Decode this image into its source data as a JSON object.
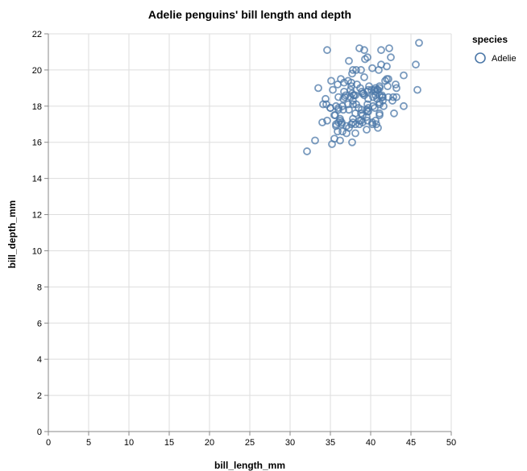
{
  "chart_data": {
    "type": "scatter",
    "title": "Adelie penguins' bill length and depth",
    "xlabel": "bill_length_mm",
    "ylabel": "bill_depth_mm",
    "xlim": [
      0,
      50
    ],
    "ylim": [
      0,
      22
    ],
    "x_ticks": [
      0,
      5,
      10,
      15,
      20,
      25,
      30,
      35,
      40,
      45,
      50
    ],
    "y_ticks": [
      0,
      2,
      4,
      6,
      8,
      10,
      12,
      14,
      16,
      18,
      20,
      22
    ],
    "grid": true,
    "legend": {
      "title": "species",
      "placement": "top-right",
      "entries": [
        "Adelie"
      ]
    },
    "colors": {
      "series": "#4c78a8"
    },
    "series": [
      {
        "name": "Adelie",
        "points": [
          [
            39.1,
            18.7
          ],
          [
            39.5,
            17.4
          ],
          [
            40.3,
            18.0
          ],
          [
            36.7,
            19.3
          ],
          [
            39.3,
            20.6
          ],
          [
            38.9,
            17.8
          ],
          [
            39.2,
            19.6
          ],
          [
            34.1,
            18.1
          ],
          [
            42.0,
            20.2
          ],
          [
            37.8,
            17.1
          ],
          [
            37.8,
            17.3
          ],
          [
            41.1,
            17.6
          ],
          [
            38.6,
            21.2
          ],
          [
            34.6,
            21.1
          ],
          [
            36.6,
            17.8
          ],
          [
            38.7,
            19.0
          ],
          [
            42.5,
            20.7
          ],
          [
            34.4,
            18.4
          ],
          [
            46.0,
            21.5
          ],
          [
            37.8,
            18.3
          ],
          [
            37.7,
            18.7
          ],
          [
            35.9,
            19.2
          ],
          [
            38.2,
            18.1
          ],
          [
            38.8,
            17.2
          ],
          [
            35.3,
            18.9
          ],
          [
            40.6,
            18.6
          ],
          [
            40.5,
            17.9
          ],
          [
            37.9,
            18.6
          ],
          [
            40.5,
            18.9
          ],
          [
            39.5,
            16.7
          ],
          [
            37.2,
            18.1
          ],
          [
            39.5,
            17.8
          ],
          [
            40.9,
            18.9
          ],
          [
            36.4,
            17.0
          ],
          [
            39.2,
            21.1
          ],
          [
            38.8,
            20.0
          ],
          [
            42.2,
            18.5
          ],
          [
            37.6,
            19.3
          ],
          [
            39.8,
            19.1
          ],
          [
            36.5,
            18.0
          ],
          [
            40.8,
            18.4
          ],
          [
            36.0,
            18.5
          ],
          [
            44.1,
            19.7
          ],
          [
            37.0,
            16.9
          ],
          [
            39.6,
            18.8
          ],
          [
            41.1,
            19.0
          ],
          [
            37.5,
            18.9
          ],
          [
            36.0,
            17.9
          ],
          [
            42.3,
            21.2
          ],
          [
            39.6,
            17.7
          ],
          [
            40.1,
            18.9
          ],
          [
            35.0,
            17.9
          ],
          [
            42.0,
            19.5
          ],
          [
            34.5,
            18.1
          ],
          [
            41.4,
            18.6
          ],
          [
            39.0,
            17.5
          ],
          [
            40.6,
            18.8
          ],
          [
            36.5,
            16.6
          ],
          [
            37.6,
            19.1
          ],
          [
            35.7,
            16.9
          ],
          [
            41.3,
            21.1
          ],
          [
            37.6,
            17.0
          ],
          [
            41.1,
            18.2
          ],
          [
            36.4,
            17.1
          ],
          [
            41.6,
            18.0
          ],
          [
            35.5,
            16.2
          ],
          [
            41.1,
            19.1
          ],
          [
            35.9,
            16.6
          ],
          [
            41.8,
            19.4
          ],
          [
            33.5,
            19.0
          ],
          [
            39.7,
            18.4
          ],
          [
            39.6,
            17.2
          ],
          [
            45.8,
            18.9
          ],
          [
            35.5,
            17.5
          ],
          [
            42.8,
            18.5
          ],
          [
            40.9,
            16.8
          ],
          [
            37.2,
            19.4
          ],
          [
            36.2,
            16.1
          ],
          [
            42.1,
            19.1
          ],
          [
            34.6,
            17.2
          ],
          [
            42.9,
            17.6
          ],
          [
            36.7,
            18.8
          ],
          [
            35.1,
            19.4
          ],
          [
            37.3,
            17.8
          ],
          [
            41.3,
            20.3
          ],
          [
            36.3,
            19.5
          ],
          [
            36.9,
            18.6
          ],
          [
            38.3,
            19.2
          ],
          [
            38.9,
            18.8
          ],
          [
            35.7,
            18.0
          ],
          [
            41.1,
            18.1
          ],
          [
            34.0,
            17.1
          ],
          [
            39.6,
            18.1
          ],
          [
            36.2,
            17.3
          ],
          [
            40.8,
            18.9
          ],
          [
            38.1,
            18.6
          ],
          [
            40.3,
            18.5
          ],
          [
            33.1,
            16.1
          ],
          [
            43.2,
            18.5
          ],
          [
            35.0,
            17.9
          ],
          [
            41.0,
            20.0
          ],
          [
            37.7,
            16.0
          ],
          [
            37.8,
            20.0
          ],
          [
            37.9,
            18.6
          ],
          [
            39.7,
            18.9
          ],
          [
            38.6,
            17.2
          ],
          [
            38.2,
            20.0
          ],
          [
            38.1,
            17.0
          ],
          [
            43.2,
            19.0
          ],
          [
            38.1,
            16.5
          ],
          [
            45.6,
            20.3
          ],
          [
            39.7,
            17.7
          ],
          [
            42.2,
            19.5
          ],
          [
            39.6,
            20.7
          ],
          [
            42.7,
            18.3
          ],
          [
            38.6,
            17.0
          ],
          [
            37.3,
            20.5
          ],
          [
            35.7,
            17.0
          ],
          [
            41.1,
            18.6
          ],
          [
            36.2,
            17.2
          ],
          [
            37.7,
            19.8
          ],
          [
            40.2,
            17.0
          ],
          [
            41.4,
            18.5
          ],
          [
            35.2,
            15.9
          ],
          [
            40.6,
            19.0
          ],
          [
            38.8,
            17.6
          ],
          [
            41.5,
            18.3
          ],
          [
            39.0,
            17.1
          ],
          [
            44.1,
            18.0
          ],
          [
            38.5,
            17.9
          ],
          [
            43.1,
            19.2
          ],
          [
            36.8,
            18.5
          ],
          [
            37.5,
            18.5
          ],
          [
            38.1,
            17.6
          ],
          [
            41.1,
            17.5
          ],
          [
            35.6,
            17.5
          ],
          [
            40.2,
            20.1
          ],
          [
            37.0,
            16.5
          ],
          [
            39.7,
            17.9
          ],
          [
            40.2,
            17.1
          ],
          [
            40.6,
            17.2
          ],
          [
            32.1,
            15.5
          ],
          [
            40.7,
            17.0
          ],
          [
            37.3,
            16.8
          ],
          [
            39.0,
            18.7
          ],
          [
            39.2,
            18.6
          ],
          [
            36.6,
            18.4
          ],
          [
            36.0,
            17.8
          ],
          [
            37.8,
            18.1
          ],
          [
            36.0,
            17.1
          ],
          [
            41.5,
            18.5
          ]
        ]
      }
    ]
  }
}
